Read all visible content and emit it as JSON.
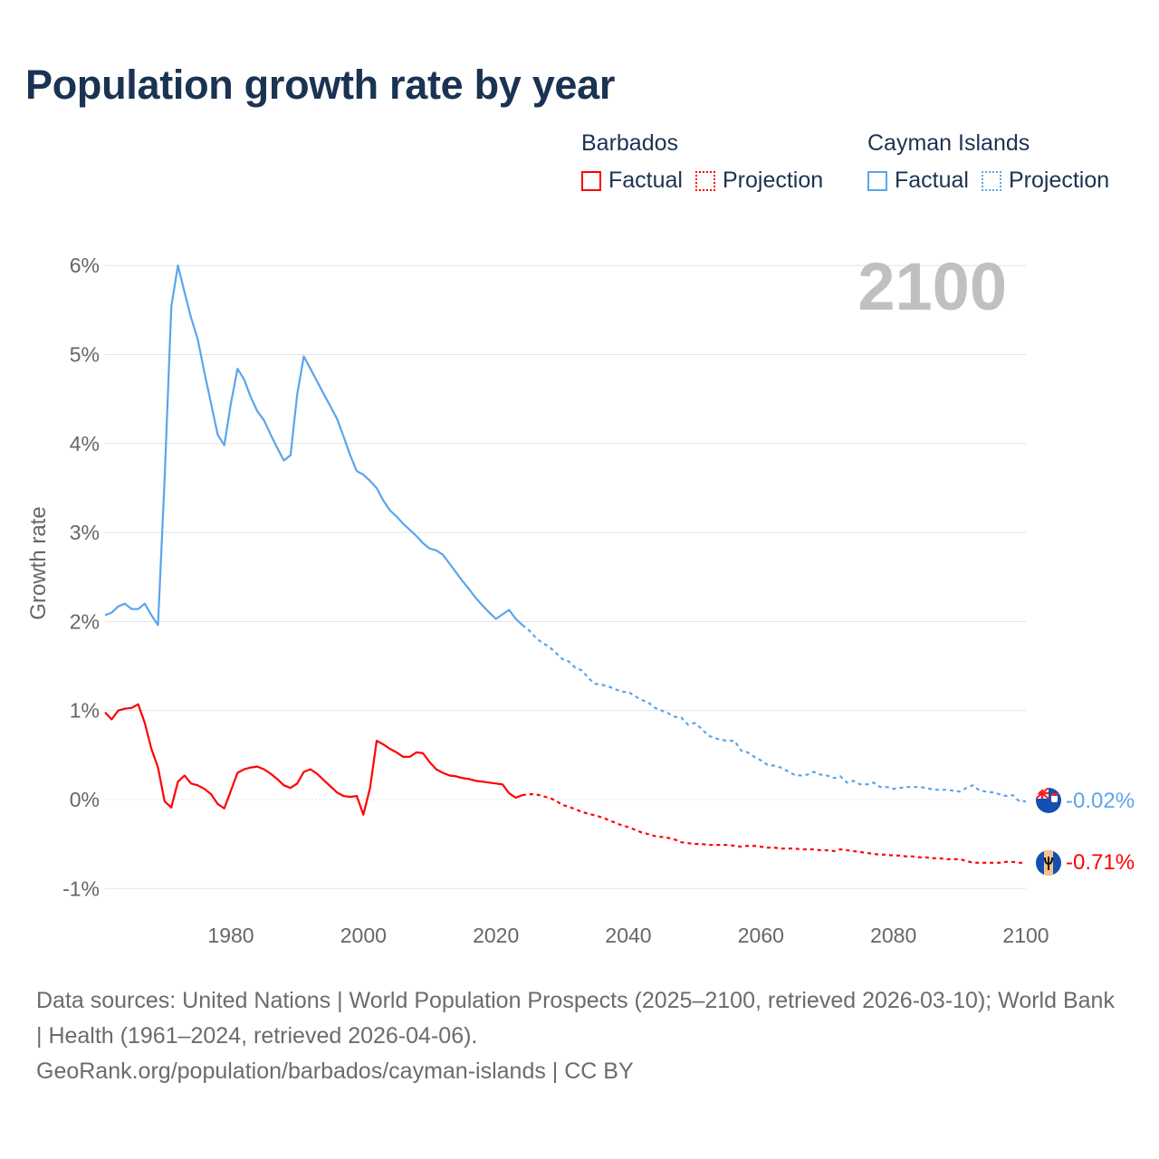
{
  "title": "Population growth rate by year",
  "legend": [
    {
      "country": "Barbados",
      "color": "#ff0000",
      "factual": "Factual",
      "projection": "Projection"
    },
    {
      "country": "Cayman Islands",
      "color": "#5aa5ec",
      "factual": "Factual",
      "projection": "Projection"
    }
  ],
  "footer": {
    "sources": "Data sources: United Nations | World Population Prospects (2025–2100, retrieved 2026-03-10); World Bank | Health (1961–2024, retrieved 2026-04-06).",
    "link": "GeoRank.org/population/barbados/cayman-islands | CC BY"
  },
  "chart_data": {
    "type": "line",
    "title": "Population growth rate by year",
    "xlabel": "",
    "ylabel": "Growth rate",
    "year_label": "2100",
    "xlim": [
      1961,
      2100
    ],
    "ylim": [
      -1.3,
      6.2
    ],
    "x_ticks": [
      {
        "v": 1980,
        "label": "1980"
      },
      {
        "v": 2000,
        "label": "2000"
      },
      {
        "v": 2020,
        "label": "2020"
      },
      {
        "v": 2040,
        "label": "2040"
      },
      {
        "v": 2060,
        "label": "2060"
      },
      {
        "v": 2080,
        "label": "2080"
      },
      {
        "v": 2100,
        "label": "2100"
      }
    ],
    "y_ticks": [
      {
        "v": 6,
        "label": "6%"
      },
      {
        "v": 5,
        "label": "5%"
      },
      {
        "v": 4,
        "label": "4%"
      },
      {
        "v": 3,
        "label": "3%"
      },
      {
        "v": 2,
        "label": "2%"
      },
      {
        "v": 1,
        "label": "1%"
      },
      {
        "v": 0,
        "label": "0%"
      },
      {
        "v": -1,
        "label": "-1%"
      }
    ],
    "grid": true,
    "legend_position": "top-right",
    "series": [
      {
        "name": "Cayman Islands",
        "color": "#5aa5ec",
        "end_label": "-0.02%",
        "factual_start": 1961,
        "factual": [
          2.07,
          2.1,
          2.17,
          2.2,
          2.14,
          2.14,
          2.2,
          2.07,
          1.96,
          3.6,
          5.54,
          6.0,
          5.7,
          5.41,
          5.17,
          4.8,
          4.45,
          4.1,
          3.98,
          4.45,
          4.84,
          4.72,
          4.52,
          4.36,
          4.26,
          4.1,
          3.95,
          3.81,
          3.87,
          4.55,
          4.98,
          4.84,
          4.7,
          4.56,
          4.42,
          4.28,
          4.08,
          3.87,
          3.69,
          3.65,
          3.58,
          3.5,
          3.36,
          3.25,
          3.18,
          3.1,
          3.03,
          2.96,
          2.88,
          2.82,
          2.8,
          2.75,
          2.65,
          2.55,
          2.45,
          2.36,
          2.26,
          2.18,
          2.1,
          2.03,
          2.08,
          2.13,
          2.03,
          1.96
        ],
        "projection_start": 2024,
        "projection": [
          1.96,
          1.9,
          1.82,
          1.76,
          1.72,
          1.65,
          1.58,
          1.55,
          1.48,
          1.45,
          1.36,
          1.3,
          1.29,
          1.27,
          1.24,
          1.21,
          1.21,
          1.16,
          1.12,
          1.09,
          1.03,
          1.0,
          0.97,
          0.93,
          0.92,
          0.84,
          0.86,
          0.8,
          0.72,
          0.69,
          0.67,
          0.66,
          0.66,
          0.55,
          0.53,
          0.48,
          0.44,
          0.39,
          0.38,
          0.36,
          0.32,
          0.28,
          0.27,
          0.28,
          0.31,
          0.28,
          0.27,
          0.24,
          0.26,
          0.19,
          0.21,
          0.17,
          0.17,
          0.19,
          0.14,
          0.14,
          0.12,
          0.13,
          0.14,
          0.14,
          0.14,
          0.13,
          0.11,
          0.11,
          0.11,
          0.1,
          0.09,
          0.13,
          0.16,
          0.1,
          0.09,
          0.08,
          0.06,
          0.04,
          0.05,
          -0.02,
          -0.02
        ]
      },
      {
        "name": "Barbados",
        "color": "#ff0000",
        "end_label": "-0.71%",
        "factual_start": 1961,
        "factual": [
          0.98,
          0.9,
          1.0,
          1.02,
          1.03,
          1.07,
          0.86,
          0.57,
          0.36,
          -0.02,
          -0.09,
          0.2,
          0.27,
          0.18,
          0.16,
          0.12,
          0.06,
          -0.05,
          -0.1,
          0.1,
          0.3,
          0.34,
          0.36,
          0.37,
          0.34,
          0.29,
          0.23,
          0.16,
          0.13,
          0.18,
          0.31,
          0.34,
          0.29,
          0.22,
          0.15,
          0.08,
          0.04,
          0.03,
          0.04,
          -0.17,
          0.13,
          0.66,
          0.62,
          0.57,
          0.53,
          0.48,
          0.48,
          0.53,
          0.52,
          0.42,
          0.34,
          0.3,
          0.27,
          0.26,
          0.24,
          0.23,
          0.21,
          0.2,
          0.19,
          0.18,
          0.17,
          0.07,
          0.02,
          0.05
        ],
        "projection_start": 2024,
        "projection": [
          0.05,
          0.06,
          0.06,
          0.04,
          0.02,
          -0.01,
          -0.06,
          -0.08,
          -0.11,
          -0.14,
          -0.16,
          -0.18,
          -0.2,
          -0.23,
          -0.26,
          -0.29,
          -0.31,
          -0.34,
          -0.37,
          -0.39,
          -0.41,
          -0.42,
          -0.43,
          -0.45,
          -0.48,
          -0.49,
          -0.5,
          -0.5,
          -0.51,
          -0.51,
          -0.51,
          -0.51,
          -0.52,
          -0.53,
          -0.52,
          -0.52,
          -0.53,
          -0.54,
          -0.54,
          -0.55,
          -0.55,
          -0.55,
          -0.56,
          -0.56,
          -0.56,
          -0.57,
          -0.57,
          -0.58,
          -0.56,
          -0.57,
          -0.58,
          -0.59,
          -0.6,
          -0.61,
          -0.62,
          -0.62,
          -0.63,
          -0.63,
          -0.64,
          -0.64,
          -0.65,
          -0.65,
          -0.66,
          -0.66,
          -0.67,
          -0.67,
          -0.67,
          -0.69,
          -0.71,
          -0.71,
          -0.71,
          -0.71,
          -0.71,
          -0.7,
          -0.7,
          -0.71,
          -0.71
        ]
      }
    ]
  }
}
